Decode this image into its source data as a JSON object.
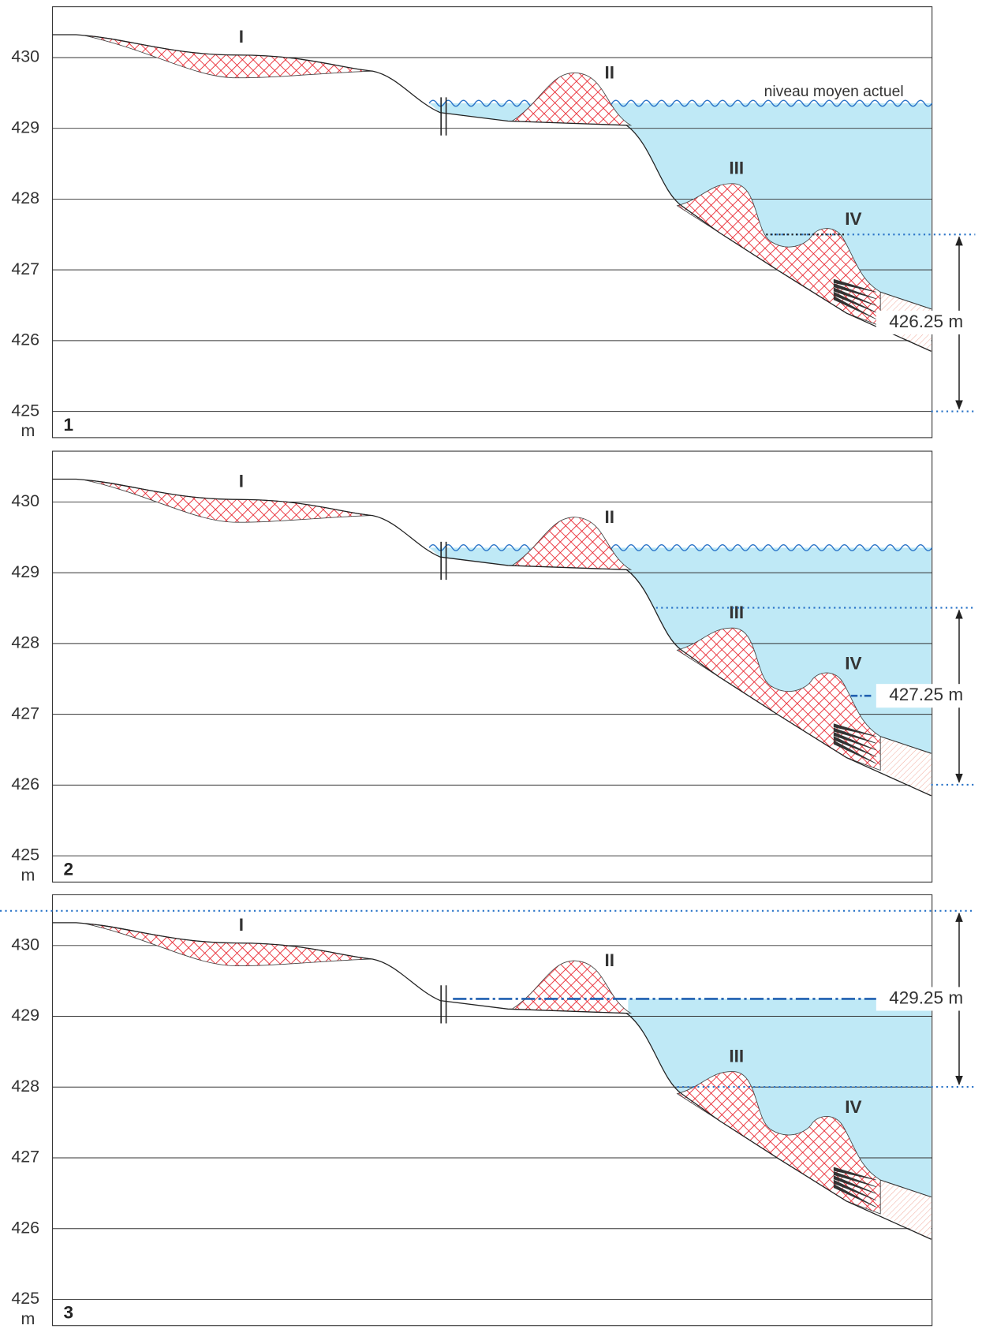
{
  "axis": {
    "ticks": [
      430,
      429,
      428,
      427,
      426,
      425
    ],
    "unit": "m"
  },
  "deposits": [
    "I",
    "II",
    "III",
    "IV"
  ],
  "water_label": "niveau moyen actuel",
  "panels": [
    {
      "number": "1",
      "level_label": "426.25 m"
    },
    {
      "number": "2",
      "level_label": "427.25 m"
    },
    {
      "number": "3",
      "level_label": "429.25 m"
    }
  ]
}
